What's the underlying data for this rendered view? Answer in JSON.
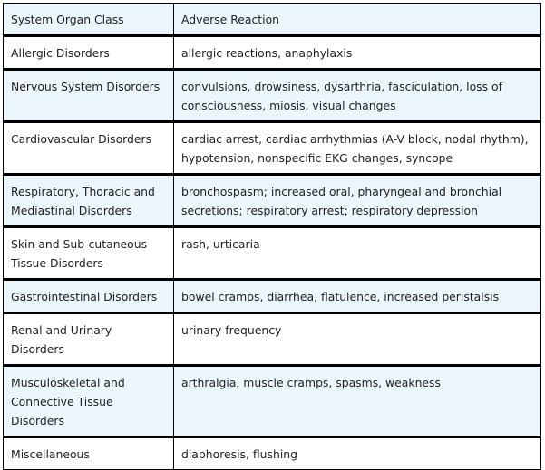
{
  "table": {
    "headers": [
      "System Organ Class",
      "Adverse Reaction"
    ],
    "rows": [
      {
        "class": "Allergic Disorders",
        "reaction": "allergic reactions, anaphylaxis"
      },
      {
        "class": "Nervous System Disorders",
        "reaction": "convulsions, drowsiness, dysarthria, fasciculation, loss of consciousness, miosis, visual changes"
      },
      {
        "class": "Cardiovascular Disorders",
        "reaction": "cardiac arrest, cardiac arrhythmias (A-V block, nodal rhythm), hypotension, nonspecific EKG changes, syncope"
      },
      {
        "class": "Respiratory, Thoracic and Mediastinal Disorders",
        "reaction": "bronchospasm; increased oral, pharyngeal and bronchial secretions; respiratory arrest; respiratory depression"
      },
      {
        "class": "Skin and Sub-cutaneous Tissue Disorders",
        "reaction": "rash, urticaria"
      },
      {
        "class": "Gastrointestinal Disorders",
        "reaction": "bowel cramps, diarrhea, flatulence, increased peristalsis"
      },
      {
        "class": "Renal and Urinary Disorders",
        "reaction": "urinary frequency"
      },
      {
        "class": "Musculoskeletal and Connective Tissue Disorders",
        "reaction": "arthralgia, muscle cramps, spasms, weakness"
      },
      {
        "class": "Miscellaneous",
        "reaction": "diaphoresis, flushing"
      }
    ],
    "colors": {
      "header_bg": "#eaf5fc",
      "alt_row_bg": "#eaf5fc",
      "border": "#000000"
    }
  }
}
